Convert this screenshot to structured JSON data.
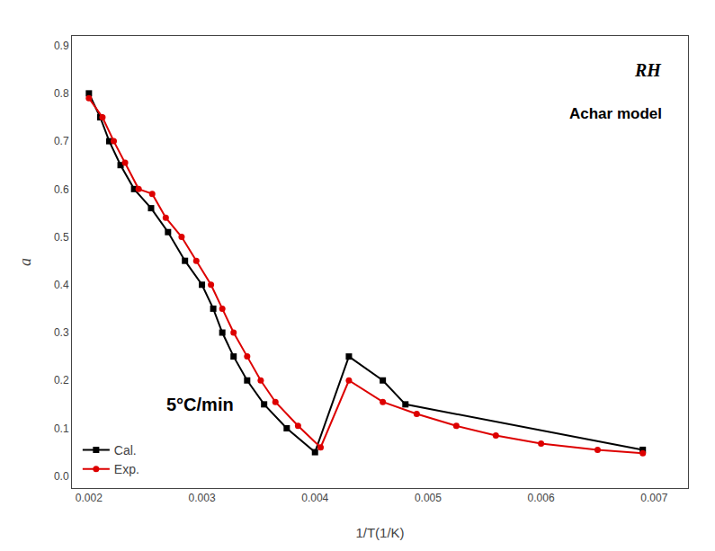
{
  "chart_data": {
    "type": "line",
    "title": "RH",
    "subtitle": "Achar model",
    "annotations": [
      "5°C/min"
    ],
    "xlabel": "1/T(1/K)",
    "ylabel": "a",
    "series": [
      {
        "name": "Cal.",
        "color": "#000000",
        "marker": "square",
        "x": [
          0.002,
          0.0021,
          0.00218,
          0.00228,
          0.0024,
          0.00255,
          0.0027,
          0.00285,
          0.003,
          0.0031,
          0.00318,
          0.00328,
          0.0034,
          0.00355,
          0.00375,
          0.004,
          0.0043,
          0.0046,
          0.0048,
          0.0069
        ],
        "values": [
          0.8,
          0.75,
          0.7,
          0.65,
          0.6,
          0.56,
          0.51,
          0.45,
          0.4,
          0.35,
          0.3,
          0.25,
          0.2,
          0.15,
          0.1,
          0.05,
          0.25,
          0.2,
          0.15,
          0.055
        ]
      },
      {
        "name": "Exp.",
        "color": "#dd0000",
        "marker": "circle",
        "x": [
          0.002,
          0.00212,
          0.00222,
          0.00232,
          0.00244,
          0.00256,
          0.00268,
          0.00282,
          0.00295,
          0.00308,
          0.00318,
          0.00328,
          0.0034,
          0.00352,
          0.00365,
          0.00385,
          0.00405,
          0.0043,
          0.0046,
          0.0049,
          0.00525,
          0.0056,
          0.006,
          0.0065,
          0.0069
        ],
        "values": [
          0.79,
          0.75,
          0.7,
          0.655,
          0.6,
          0.59,
          0.54,
          0.5,
          0.45,
          0.4,
          0.35,
          0.3,
          0.25,
          0.2,
          0.155,
          0.105,
          0.06,
          0.2,
          0.155,
          0.13,
          0.105,
          0.085,
          0.068,
          0.055,
          0.048
        ]
      }
    ],
    "xlim": [
      0.00185,
      0.0073
    ],
    "ylim": [
      -0.025,
      0.92
    ],
    "xticks": [
      0.002,
      0.003,
      0.004,
      0.005,
      0.006,
      0.007
    ],
    "yticks": [
      {
        "value": 0.0,
        "label": "0.0"
      },
      0.1,
      0.2,
      0.3,
      0.4,
      0.5,
      0.6,
      0.7,
      0.8,
      0.9
    ],
    "grid": false,
    "legend": "lower left"
  }
}
